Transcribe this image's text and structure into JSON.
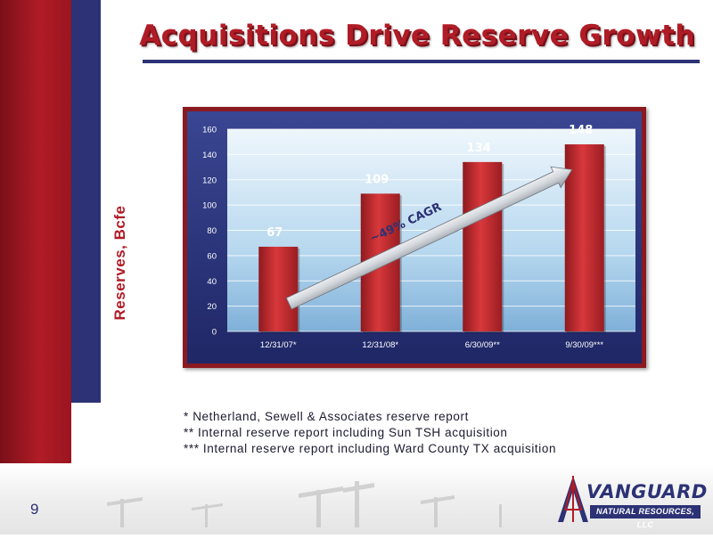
{
  "slide": {
    "title": "Acquisitions Drive Reserve Growth",
    "page_number": "9",
    "footnotes": [
      "* Netherland, Sewell & Associates reserve report",
      "** Internal reserve report including Sun TSH acquisition",
      "*** Internal reserve report including Ward County TX acquisition"
    ],
    "logo": {
      "name": "VANGUARD",
      "subtitle": "NATURAL RESOURCES, LLC"
    }
  },
  "colors": {
    "accent_red": "#b01c26",
    "navy": "#2c3275",
    "bar_red": "#c62a2e"
  },
  "chart_data": {
    "type": "bar",
    "categories": [
      "12/31/07*",
      "12/31/08*",
      "6/30/09**",
      "9/30/09***"
    ],
    "values": [
      67,
      109,
      134,
      148
    ],
    "data_labels": [
      "67",
      "109",
      "134",
      "148"
    ],
    "ylabel": "Reserves, Bcfe",
    "ylim": [
      0,
      160
    ],
    "yticks": [
      0,
      20,
      40,
      60,
      80,
      100,
      120,
      140,
      160
    ],
    "grid": true,
    "annotation": "~49% CAGR"
  }
}
